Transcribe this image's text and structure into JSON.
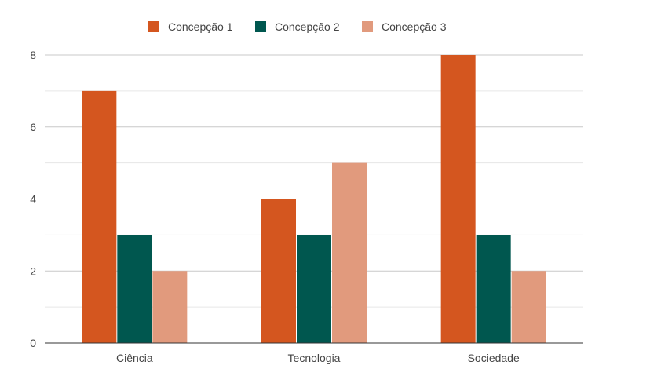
{
  "chart_data": {
    "type": "bar",
    "title": "",
    "xlabel": "",
    "ylabel": "",
    "categories": [
      "Ciência",
      "Tecnologia",
      "Sociedade"
    ],
    "series": [
      {
        "name": "Concepção 1",
        "color": "#d4561f",
        "values": [
          7,
          4,
          8
        ]
      },
      {
        "name": "Concepção 2",
        "color": "#00574f",
        "values": [
          3,
          3,
          3
        ]
      },
      {
        "name": "Concepção 3",
        "color": "#e19a7d",
        "values": [
          2,
          5,
          2
        ]
      }
    ],
    "ylim": [
      0,
      8
    ],
    "yticks": [
      "0",
      "2",
      "4",
      "6",
      "8"
    ],
    "grid": true,
    "legend_position": "top"
  }
}
